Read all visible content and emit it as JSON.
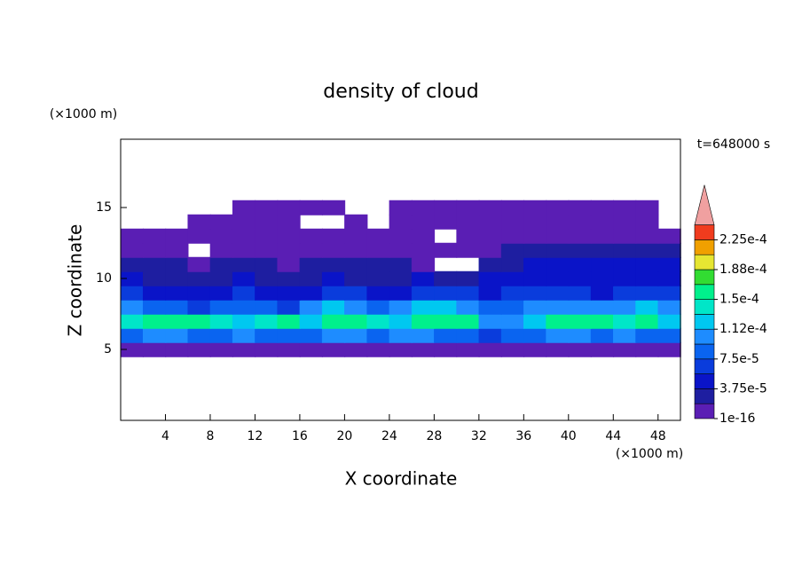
{
  "chart_data": {
    "type": "contour",
    "title": "density of cloud",
    "time_label": "t=648000 s",
    "x_label": "X coordinate",
    "y_label": "Z coordinate",
    "x_unit": "(×1000 m)",
    "y_unit": "(×1000 m)",
    "xlim": [
      0,
      50
    ],
    "ylim": [
      0,
      20
    ],
    "xticks": [
      4,
      8,
      12,
      16,
      20,
      24,
      28,
      32,
      36,
      40,
      44,
      48
    ],
    "yticks": [
      5,
      10,
      15
    ],
    "x": [
      1,
      3,
      5,
      7,
      9,
      11,
      13,
      15,
      17,
      19,
      21,
      23,
      25,
      27,
      29,
      31,
      33,
      35,
      37,
      39,
      41,
      43,
      45,
      47,
      49
    ],
    "z": [
      5,
      6,
      7,
      8,
      9,
      10,
      11,
      12,
      13,
      14,
      15
    ],
    "values": [
      [
        1e-05,
        1e-05,
        1e-05,
        1e-05,
        1e-05,
        1e-05,
        1e-05,
        1e-05,
        1e-05,
        1e-05,
        1e-05,
        1e-05,
        1e-05,
        1e-05,
        1e-05,
        1e-05,
        1e-05,
        1e-05,
        1e-05,
        1e-05,
        1e-05,
        1e-05,
        1e-05,
        1e-05,
        1e-05
      ],
      [
        9e-05,
        0.0001,
        0.0001,
        9e-05,
        9e-05,
        0.0001,
        9e-05,
        8e-05,
        9e-05,
        0.0001,
        0.0001,
        9e-05,
        0.0001,
        0.0001,
        9e-05,
        8e-05,
        6e-05,
        8e-05,
        9e-05,
        0.0001,
        0.0001,
        9e-05,
        0.0001,
        9e-05,
        9e-05
      ],
      [
        0.00014,
        0.00015,
        0.00016,
        0.00015,
        0.00014,
        0.00013,
        0.00014,
        0.00015,
        0.00012,
        0.00015,
        0.00016,
        0.00014,
        0.00013,
        0.00015,
        0.00016,
        0.00016,
        0.00011,
        0.0001,
        0.00013,
        0.00015,
        0.00016,
        0.00015,
        0.00014,
        0.00015,
        0.00013
      ],
      [
        0.0001,
        9e-05,
        8e-05,
        7e-05,
        8e-05,
        9e-05,
        8e-05,
        7e-05,
        0.0001,
        0.00012,
        0.00011,
        9e-05,
        0.0001,
        0.00012,
        0.00013,
        0.00011,
        9e-05,
        8e-05,
        0.0001,
        0.00011,
        0.00011,
        0.0001,
        0.00011,
        0.00012,
        0.0001
      ],
      [
        6e-05,
        5e-05,
        5e-05,
        4e-05,
        5e-05,
        6e-05,
        5e-05,
        4e-05,
        5e-05,
        6e-05,
        6e-05,
        5e-05,
        5e-05,
        6e-05,
        7e-05,
        6e-05,
        5e-05,
        6e-05,
        7e-05,
        6e-05,
        6e-05,
        5e-05,
        6e-05,
        7e-05,
        6e-05
      ],
      [
        4e-05,
        3e-05,
        3e-05,
        3e-05,
        3e-05,
        4e-05,
        3e-05,
        3e-05,
        3e-05,
        4e-05,
        3e-05,
        3e-05,
        3e-05,
        4e-05,
        3e-05,
        3e-05,
        4e-05,
        4e-05,
        5e-05,
        5e-05,
        4e-05,
        4e-05,
        5e-05,
        5e-05,
        4e-05
      ],
      [
        2e-05,
        2e-05,
        2e-05,
        1e-05,
        2e-05,
        2e-05,
        2e-05,
        1e-05,
        2e-05,
        2e-05,
        2e-05,
        2e-05,
        2e-05,
        1e-05,
        null,
        null,
        2e-05,
        2e-05,
        4e-05,
        4e-05,
        4e-05,
        4e-05,
        4e-05,
        4e-05,
        4e-05
      ],
      [
        1e-05,
        1e-05,
        1e-05,
        null,
        1e-05,
        1e-05,
        1e-05,
        1e-05,
        1e-05,
        1e-05,
        1e-05,
        1e-05,
        1e-05,
        1e-05,
        1e-05,
        1e-05,
        1e-05,
        2e-05,
        2e-05,
        2e-05,
        2e-05,
        2e-05,
        2e-05,
        2e-05,
        2e-05
      ],
      [
        1e-05,
        1e-05,
        1e-05,
        1e-05,
        1e-05,
        1e-05,
        1e-05,
        1e-05,
        1e-05,
        1e-05,
        1e-05,
        1e-05,
        1e-05,
        1e-05,
        null,
        1e-05,
        1e-05,
        1e-05,
        1e-05,
        1e-05,
        1e-05,
        1e-05,
        1e-05,
        1e-05,
        1e-05
      ],
      [
        null,
        null,
        null,
        1e-05,
        1e-05,
        1e-05,
        1e-05,
        1e-05,
        null,
        null,
        1e-05,
        null,
        1e-05,
        1e-05,
        1e-05,
        1e-05,
        1e-05,
        1e-05,
        1e-05,
        1e-05,
        1e-05,
        1e-05,
        1e-05,
        1e-05,
        null
      ],
      [
        null,
        null,
        null,
        null,
        null,
        5e-06,
        5e-06,
        5e-06,
        5e-06,
        5e-06,
        null,
        null,
        5e-06,
        5e-06,
        5e-06,
        5e-06,
        5e-06,
        5e-06,
        5e-06,
        5e-06,
        5e-06,
        5e-06,
        5e-06,
        5e-06,
        null
      ]
    ],
    "levels": [
      1e-16,
      1.875e-05,
      3.75e-05,
      5.625e-05,
      7.5e-05,
      9.375e-05,
      0.0001125,
      0.00013125,
      0.00015,
      0.00016875,
      0.0001875,
      0.00020625,
      0.000225,
      0.00024375
    ],
    "colors": [
      "#5a1eb4",
      "#1e1ea0",
      "#0a14c8",
      "#0a3cdc",
      "#0a64f0",
      "#1e8cff",
      "#00c8f0",
      "#00e6c8",
      "#00f08c",
      "#32dc32",
      "#e6e632",
      "#f0a000",
      "#f03c1e",
      "#f0a0a0"
    ],
    "colorbar_ticks": [
      {
        "value": 1e-16,
        "label": "1e-16"
      },
      {
        "value": 3.75e-05,
        "label": "3.75e-5"
      },
      {
        "value": 7.5e-05,
        "label": "7.5e-5"
      },
      {
        "value": 0.0001125,
        "label": "1.12e-4"
      },
      {
        "value": 0.00015,
        "label": "1.5e-4"
      },
      {
        "value": 0.0001875,
        "label": "1.88e-4"
      },
      {
        "value": 0.000225,
        "label": "2.25e-4"
      }
    ]
  }
}
